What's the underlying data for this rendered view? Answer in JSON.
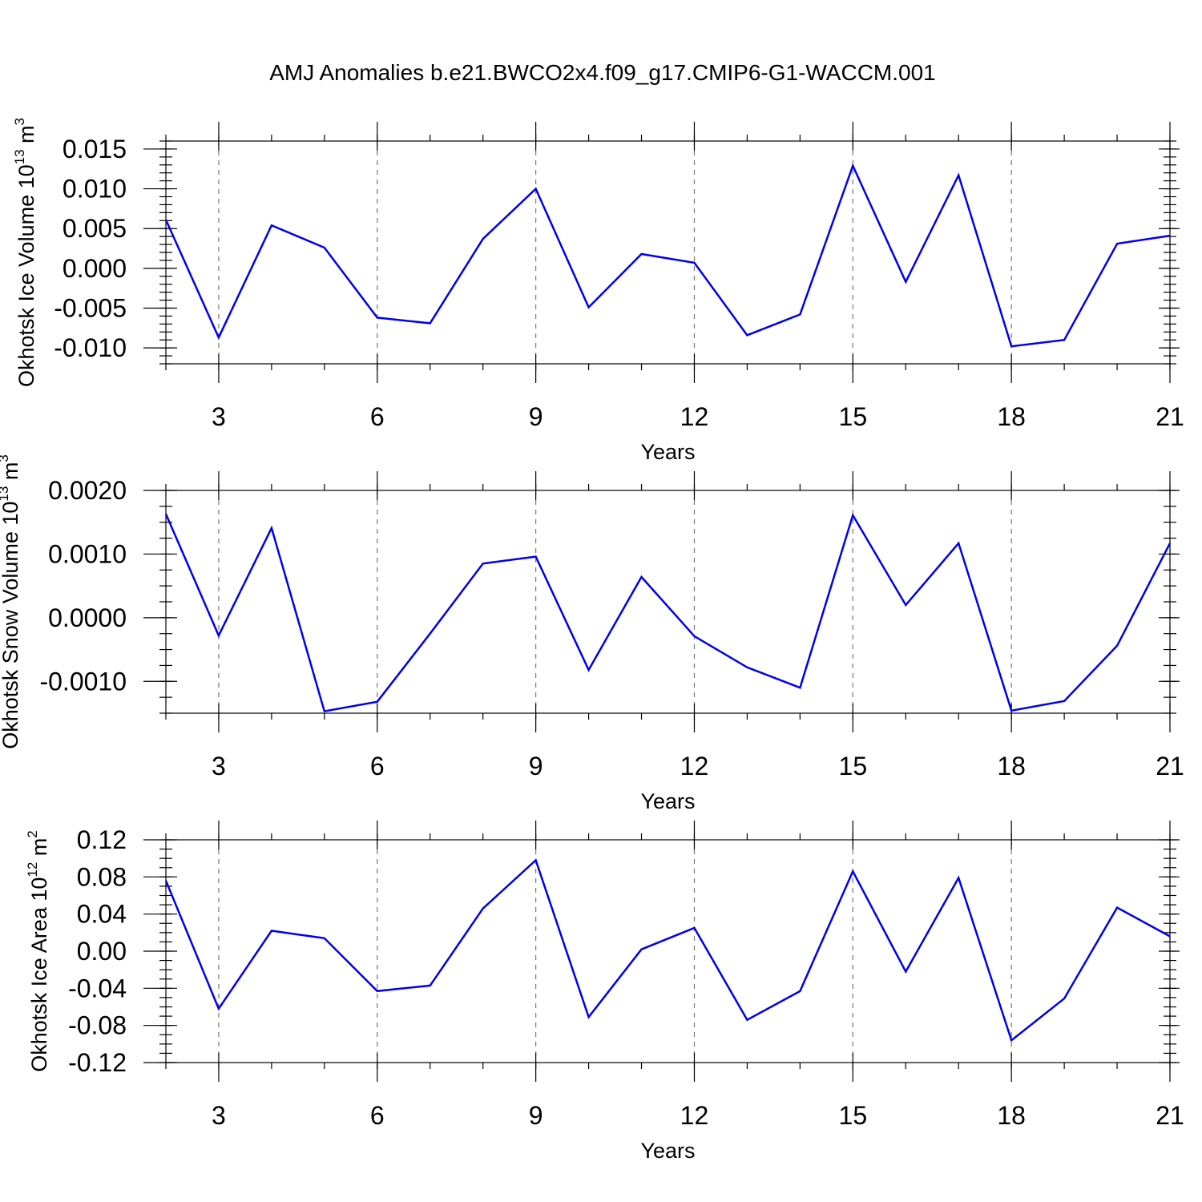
{
  "title": "AMJ Anomalies b.e21.BWCO2x4.f09_g17.CMIP6-G1-WACCM.001",
  "colors": {
    "line": "#0000ee",
    "axis": "#000000",
    "grid": "#777777"
  },
  "chart_data": [
    {
      "type": "line",
      "xlabel": "Years",
      "ylabel": {
        "text": "Okhotsk Ice Volume 10",
        "exp": "13",
        "unit": " m",
        "unit_exp": "3"
      },
      "xlim": [
        2,
        21
      ],
      "ylim": [
        -0.012,
        0.016
      ],
      "x_major_ticks": [
        3,
        6,
        9,
        12,
        15,
        18,
        21
      ],
      "x_minor_ticks": [
        2,
        3,
        4,
        5,
        6,
        7,
        8,
        9,
        10,
        11,
        12,
        13,
        14,
        15,
        16,
        17,
        18,
        19,
        20,
        21
      ],
      "y_major_ticks": [
        -0.01,
        -0.005,
        0.0,
        0.005,
        0.01,
        0.015
      ],
      "y_tick_labels": [
        "-0.010",
        "-0.005",
        "0.000",
        "0.005",
        "0.010",
        "0.015"
      ],
      "y_minor_step": 0.001,
      "grid": "vertical dashed at major x ticks",
      "x": [
        2,
        3,
        4,
        5,
        6,
        7,
        8,
        9,
        10,
        11,
        12,
        13,
        14,
        15,
        16,
        17,
        18,
        19,
        20,
        21
      ],
      "values": [
        0.0061,
        -0.0087,
        0.0054,
        0.0026,
        -0.0062,
        -0.0069,
        0.0037,
        0.01,
        -0.0049,
        0.0018,
        0.0007,
        -0.0084,
        -0.0058,
        0.0129,
        -0.0017,
        0.0117,
        -0.0098,
        -0.009,
        0.0031,
        0.0041
      ]
    },
    {
      "type": "line",
      "xlabel": "Years",
      "ylabel": {
        "text": "Okhotsk Snow Volume 10",
        "exp": "13",
        "unit": " m",
        "unit_exp": "3"
      },
      "xlim": [
        2,
        21
      ],
      "ylim": [
        -0.0015,
        0.002
      ],
      "x_major_ticks": [
        3,
        6,
        9,
        12,
        15,
        18,
        21
      ],
      "x_minor_ticks": [
        2,
        3,
        4,
        5,
        6,
        7,
        8,
        9,
        10,
        11,
        12,
        13,
        14,
        15,
        16,
        17,
        18,
        19,
        20,
        21
      ],
      "y_major_ticks": [
        -0.001,
        0.0,
        0.001,
        0.002
      ],
      "y_tick_labels": [
        "-0.0010",
        "0.0000",
        "0.0010",
        "0.0020"
      ],
      "y_minor_step": 0.00025,
      "grid": "vertical dashed at major x ticks",
      "x": [
        2,
        3,
        4,
        5,
        6,
        7,
        8,
        9,
        10,
        11,
        12,
        13,
        14,
        15,
        16,
        17,
        18,
        19,
        20,
        21
      ],
      "values": [
        0.00163,
        -0.00028,
        0.00141,
        -0.00147,
        -0.00132,
        -0.00025,
        0.00085,
        0.00096,
        -0.00082,
        0.00064,
        -0.00029,
        -0.00078,
        -0.0011,
        0.00161,
        0.0002,
        0.00117,
        -0.00146,
        -0.00131,
        -0.00044,
        0.00117
      ]
    },
    {
      "type": "line",
      "xlabel": "Years",
      "ylabel": {
        "text": "Okhotsk Ice Area 10",
        "exp": "12",
        "unit": " m",
        "unit_exp": "2"
      },
      "xlim": [
        2,
        21
      ],
      "ylim": [
        -0.12,
        0.12
      ],
      "x_major_ticks": [
        3,
        6,
        9,
        12,
        15,
        18,
        21
      ],
      "x_minor_ticks": [
        2,
        3,
        4,
        5,
        6,
        7,
        8,
        9,
        10,
        11,
        12,
        13,
        14,
        15,
        16,
        17,
        18,
        19,
        20,
        21
      ],
      "y_major_ticks": [
        -0.12,
        -0.08,
        -0.04,
        0.0,
        0.04,
        0.08,
        0.12
      ],
      "y_tick_labels": [
        "-0.12",
        "-0.08",
        "-0.04",
        "0.00",
        "0.04",
        "0.08",
        "0.12"
      ],
      "y_minor_step": 0.01,
      "grid": "vertical dashed at major x ticks",
      "x": [
        2,
        3,
        4,
        5,
        6,
        7,
        8,
        9,
        10,
        11,
        12,
        13,
        14,
        15,
        16,
        17,
        18,
        19,
        20,
        21
      ],
      "values": [
        0.076,
        -0.062,
        0.022,
        0.014,
        -0.043,
        -0.037,
        0.046,
        0.098,
        -0.071,
        0.002,
        0.025,
        -0.074,
        -0.043,
        0.086,
        -0.022,
        0.079,
        -0.096,
        -0.051,
        0.047,
        0.016
      ]
    }
  ]
}
